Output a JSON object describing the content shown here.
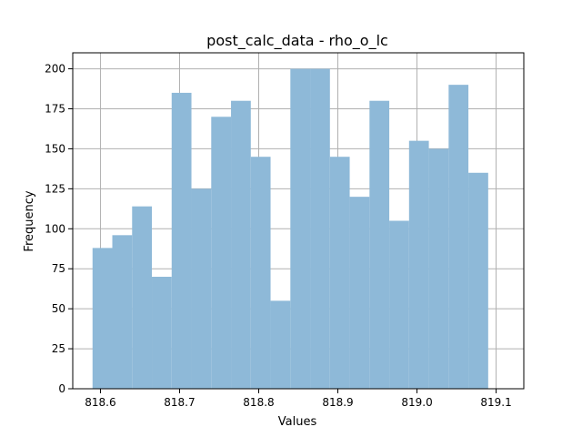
{
  "chart_data": {
    "type": "bar",
    "title": "post_calc_data - rho_o_lc",
    "xlabel": "Values",
    "ylabel": "Frequency",
    "xlim": [
      818.565,
      819.135
    ],
    "ylim": [
      0,
      210
    ],
    "x_ticks": [
      818.6,
      818.7,
      818.8,
      818.9,
      819.0,
      819.1
    ],
    "x_tick_labels": [
      "818.6",
      "818.7",
      "818.8",
      "818.9",
      "819.0",
      "819.1"
    ],
    "y_ticks": [
      0,
      25,
      50,
      75,
      100,
      125,
      150,
      175,
      200
    ],
    "y_tick_labels": [
      "0",
      "25",
      "50",
      "75",
      "100",
      "125",
      "150",
      "175",
      "200"
    ],
    "grid": true,
    "color": "#8eb9d8",
    "bins": [
      {
        "x0": 818.59,
        "x1": 818.615,
        "count": 88
      },
      {
        "x0": 818.615,
        "x1": 818.64,
        "count": 96
      },
      {
        "x0": 818.64,
        "x1": 818.665,
        "count": 114
      },
      {
        "x0": 818.665,
        "x1": 818.69,
        "count": 70
      },
      {
        "x0": 818.69,
        "x1": 818.715,
        "count": 185
      },
      {
        "x0": 818.715,
        "x1": 818.74,
        "count": 125
      },
      {
        "x0": 818.74,
        "x1": 818.765,
        "count": 170
      },
      {
        "x0": 818.765,
        "x1": 818.79,
        "count": 180
      },
      {
        "x0": 818.79,
        "x1": 818.815,
        "count": 145
      },
      {
        "x0": 818.815,
        "x1": 818.84,
        "count": 55
      },
      {
        "x0": 818.84,
        "x1": 818.865,
        "count": 200
      },
      {
        "x0": 818.865,
        "x1": 818.89,
        "count": 200
      },
      {
        "x0": 818.89,
        "x1": 818.915,
        "count": 145
      },
      {
        "x0": 818.915,
        "x1": 818.94,
        "count": 120
      },
      {
        "x0": 818.94,
        "x1": 818.965,
        "count": 180
      },
      {
        "x0": 818.965,
        "x1": 818.99,
        "count": 105
      },
      {
        "x0": 818.99,
        "x1": 819.015,
        "count": 155
      },
      {
        "x0": 819.015,
        "x1": 819.04,
        "count": 150
      },
      {
        "x0": 819.04,
        "x1": 819.065,
        "count": 190
      },
      {
        "x0": 819.065,
        "x1": 819.09,
        "count": 135
      }
    ]
  }
}
